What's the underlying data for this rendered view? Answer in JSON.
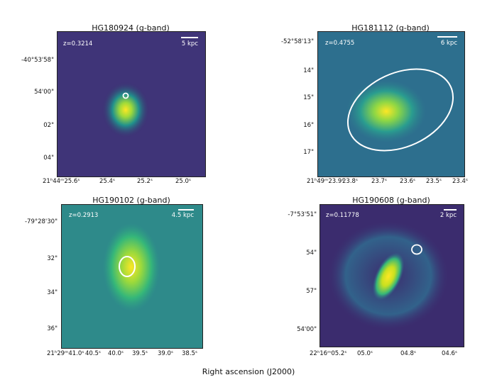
{
  "xlabel": "Right ascension (J2000)",
  "panels": [
    {
      "title": "HG180924 (g-band)",
      "z": "z=0.3214",
      "scale": "5 kpc",
      "yticks": [
        "-40°53'58\"",
        "54'00\"",
        "02\"",
        "04\""
      ],
      "xticks": [
        "21ʰ44ᵐ25.6ˢ",
        "25.4ˢ",
        "25.2ˢ",
        "25.0ˢ"
      ]
    },
    {
      "title": "HG181112 (g-band)",
      "z": "z=0.4755",
      "scale": "6 kpc",
      "yticks": [
        "-52°58'13\"",
        "14\"",
        "15\"",
        "16\"",
        "17\""
      ],
      "xticks": [
        "21ʰ49ᵐ23.9ˢ",
        "23.8ˢ",
        "23.7ˢ",
        "23.6ˢ",
        "23.5ˢ",
        "23.4ˢ"
      ]
    },
    {
      "title": "HG190102 (g-band)",
      "z": "z=0.2913",
      "scale": "4.5 kpc",
      "yticks": [
        "-79°28'30\"",
        "32\"",
        "34\"",
        "36\""
      ],
      "xticks": [
        "21ʰ29ᵐ41.0ˢ",
        "40.5ˢ",
        "40.0ˢ",
        "39.5ˢ",
        "39.0ˢ",
        "38.5ˢ"
      ]
    },
    {
      "title": "HG190608 (g-band)",
      "z": "z=0.11778",
      "scale": "2 kpc",
      "yticks": [
        "-7°53'51\"",
        "54\"",
        "57\"",
        "54'00\""
      ],
      "xticks": [
        "22ʰ16ᵐ05.2ˢ",
        "05.0ˢ",
        "04.8ˢ",
        "04.6ˢ"
      ]
    }
  ],
  "colors": {
    "background": "#3b2c6e",
    "glow_mid": "#21918c",
    "glow_core": "#fde725",
    "marker": "#ffffff"
  }
}
